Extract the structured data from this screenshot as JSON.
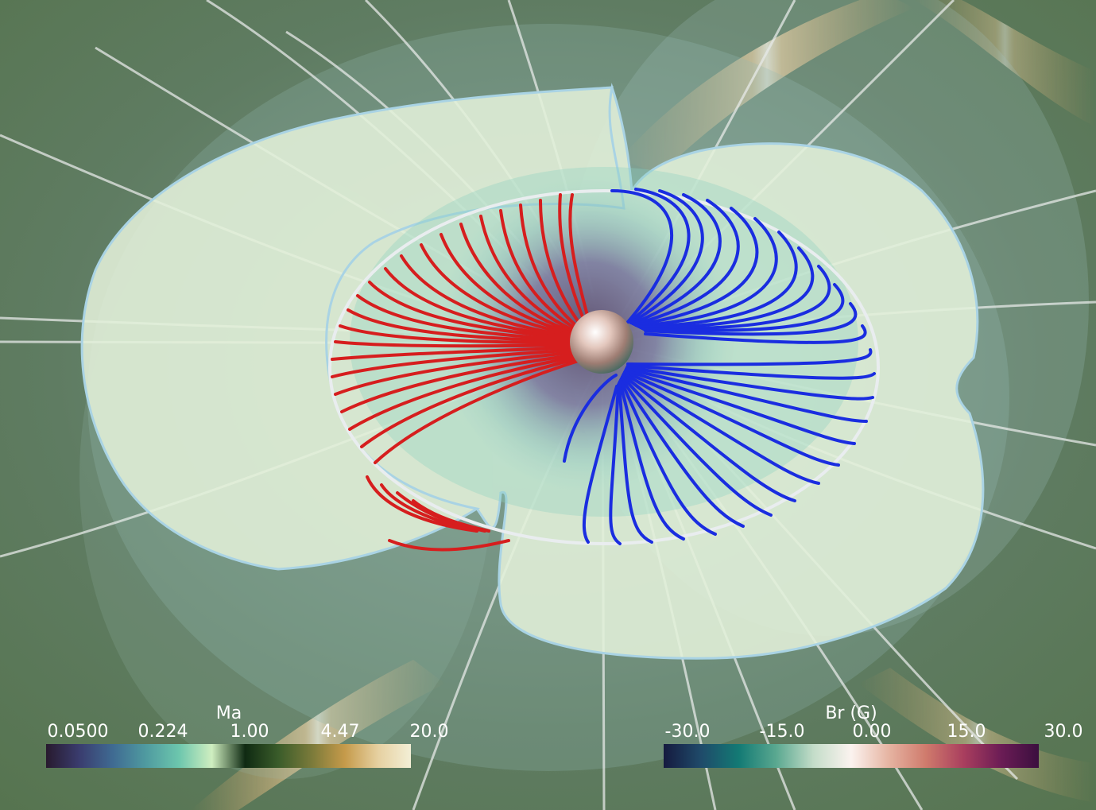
{
  "colorbars": {
    "ma": {
      "title": "Ma",
      "ticks": [
        "0.0500",
        "0.224",
        "1.00",
        "4.47",
        "20.0"
      ],
      "stops": [
        "#281a2e",
        "#3a3c6e",
        "#3f6a92",
        "#4f9aa0",
        "#6cc6ad",
        "#cfeec0",
        "#0f2a12",
        "#3a5c2a",
        "#7a7a3a",
        "#c59a4a",
        "#e6d0a0",
        "#f3efd6"
      ]
    },
    "br": {
      "title": "Br (G)",
      "ticks": [
        "-30.0",
        "-15.0",
        "0.00",
        "15.0",
        "30.0"
      ],
      "stops": [
        "#151a3f",
        "#1f4b6a",
        "#137a74",
        "#5aa890",
        "#c4ddc9",
        "#fbf3ef",
        "#e6b4a2",
        "#cf7a6c",
        "#a93e5e",
        "#6b1c55",
        "#3b0f3f"
      ]
    }
  },
  "colors": {
    "background": "#5d7a5c",
    "sheet": "#dfeed9",
    "sheet_edge": "#a6cfe0",
    "ring": "#e8ecef",
    "field_red": "#dc1f1f",
    "field_blue": "#1c2fe0",
    "field_white": "#e9eceb"
  }
}
